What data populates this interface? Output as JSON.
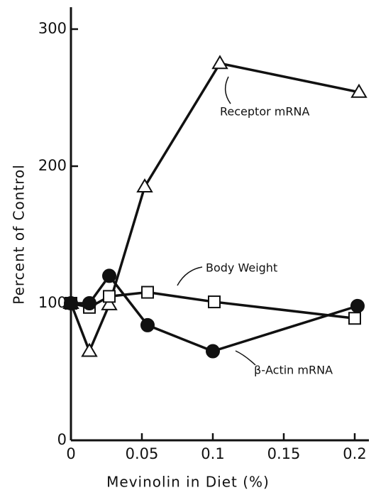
{
  "chart_data": {
    "type": "line",
    "xlabel": "Mevinolin in Diet (%)",
    "ylabel": "Percent of Control",
    "xlim": [
      0,
      0.21
    ],
    "ylim": [
      0,
      316
    ],
    "xticks": [
      0,
      0.05,
      0.1,
      0.15,
      0.2
    ],
    "yticks": [
      0,
      100,
      200,
      300
    ],
    "series": [
      {
        "name": "Receptor mRNA",
        "color": "#111111",
        "marker": "triangle",
        "x": [
          0,
          0.013,
          0.027,
          0.052,
          0.105,
          0.203
        ],
        "values": [
          100,
          65,
          99,
          185,
          275,
          254
        ]
      },
      {
        "name": "Body Weight",
        "color": "#111111",
        "marker": "square",
        "x": [
          0,
          0.013,
          0.027,
          0.054,
          0.101,
          0.2
        ],
        "values": [
          100,
          97,
          105,
          108,
          101,
          89
        ]
      },
      {
        "name": "β-Actin mRNA",
        "color": "#111111",
        "marker": "circle",
        "x": [
          0,
          0.013,
          0.027,
          0.054,
          0.1,
          0.202
        ],
        "values": [
          100,
          100,
          120,
          84,
          65,
          98
        ]
      }
    ]
  }
}
